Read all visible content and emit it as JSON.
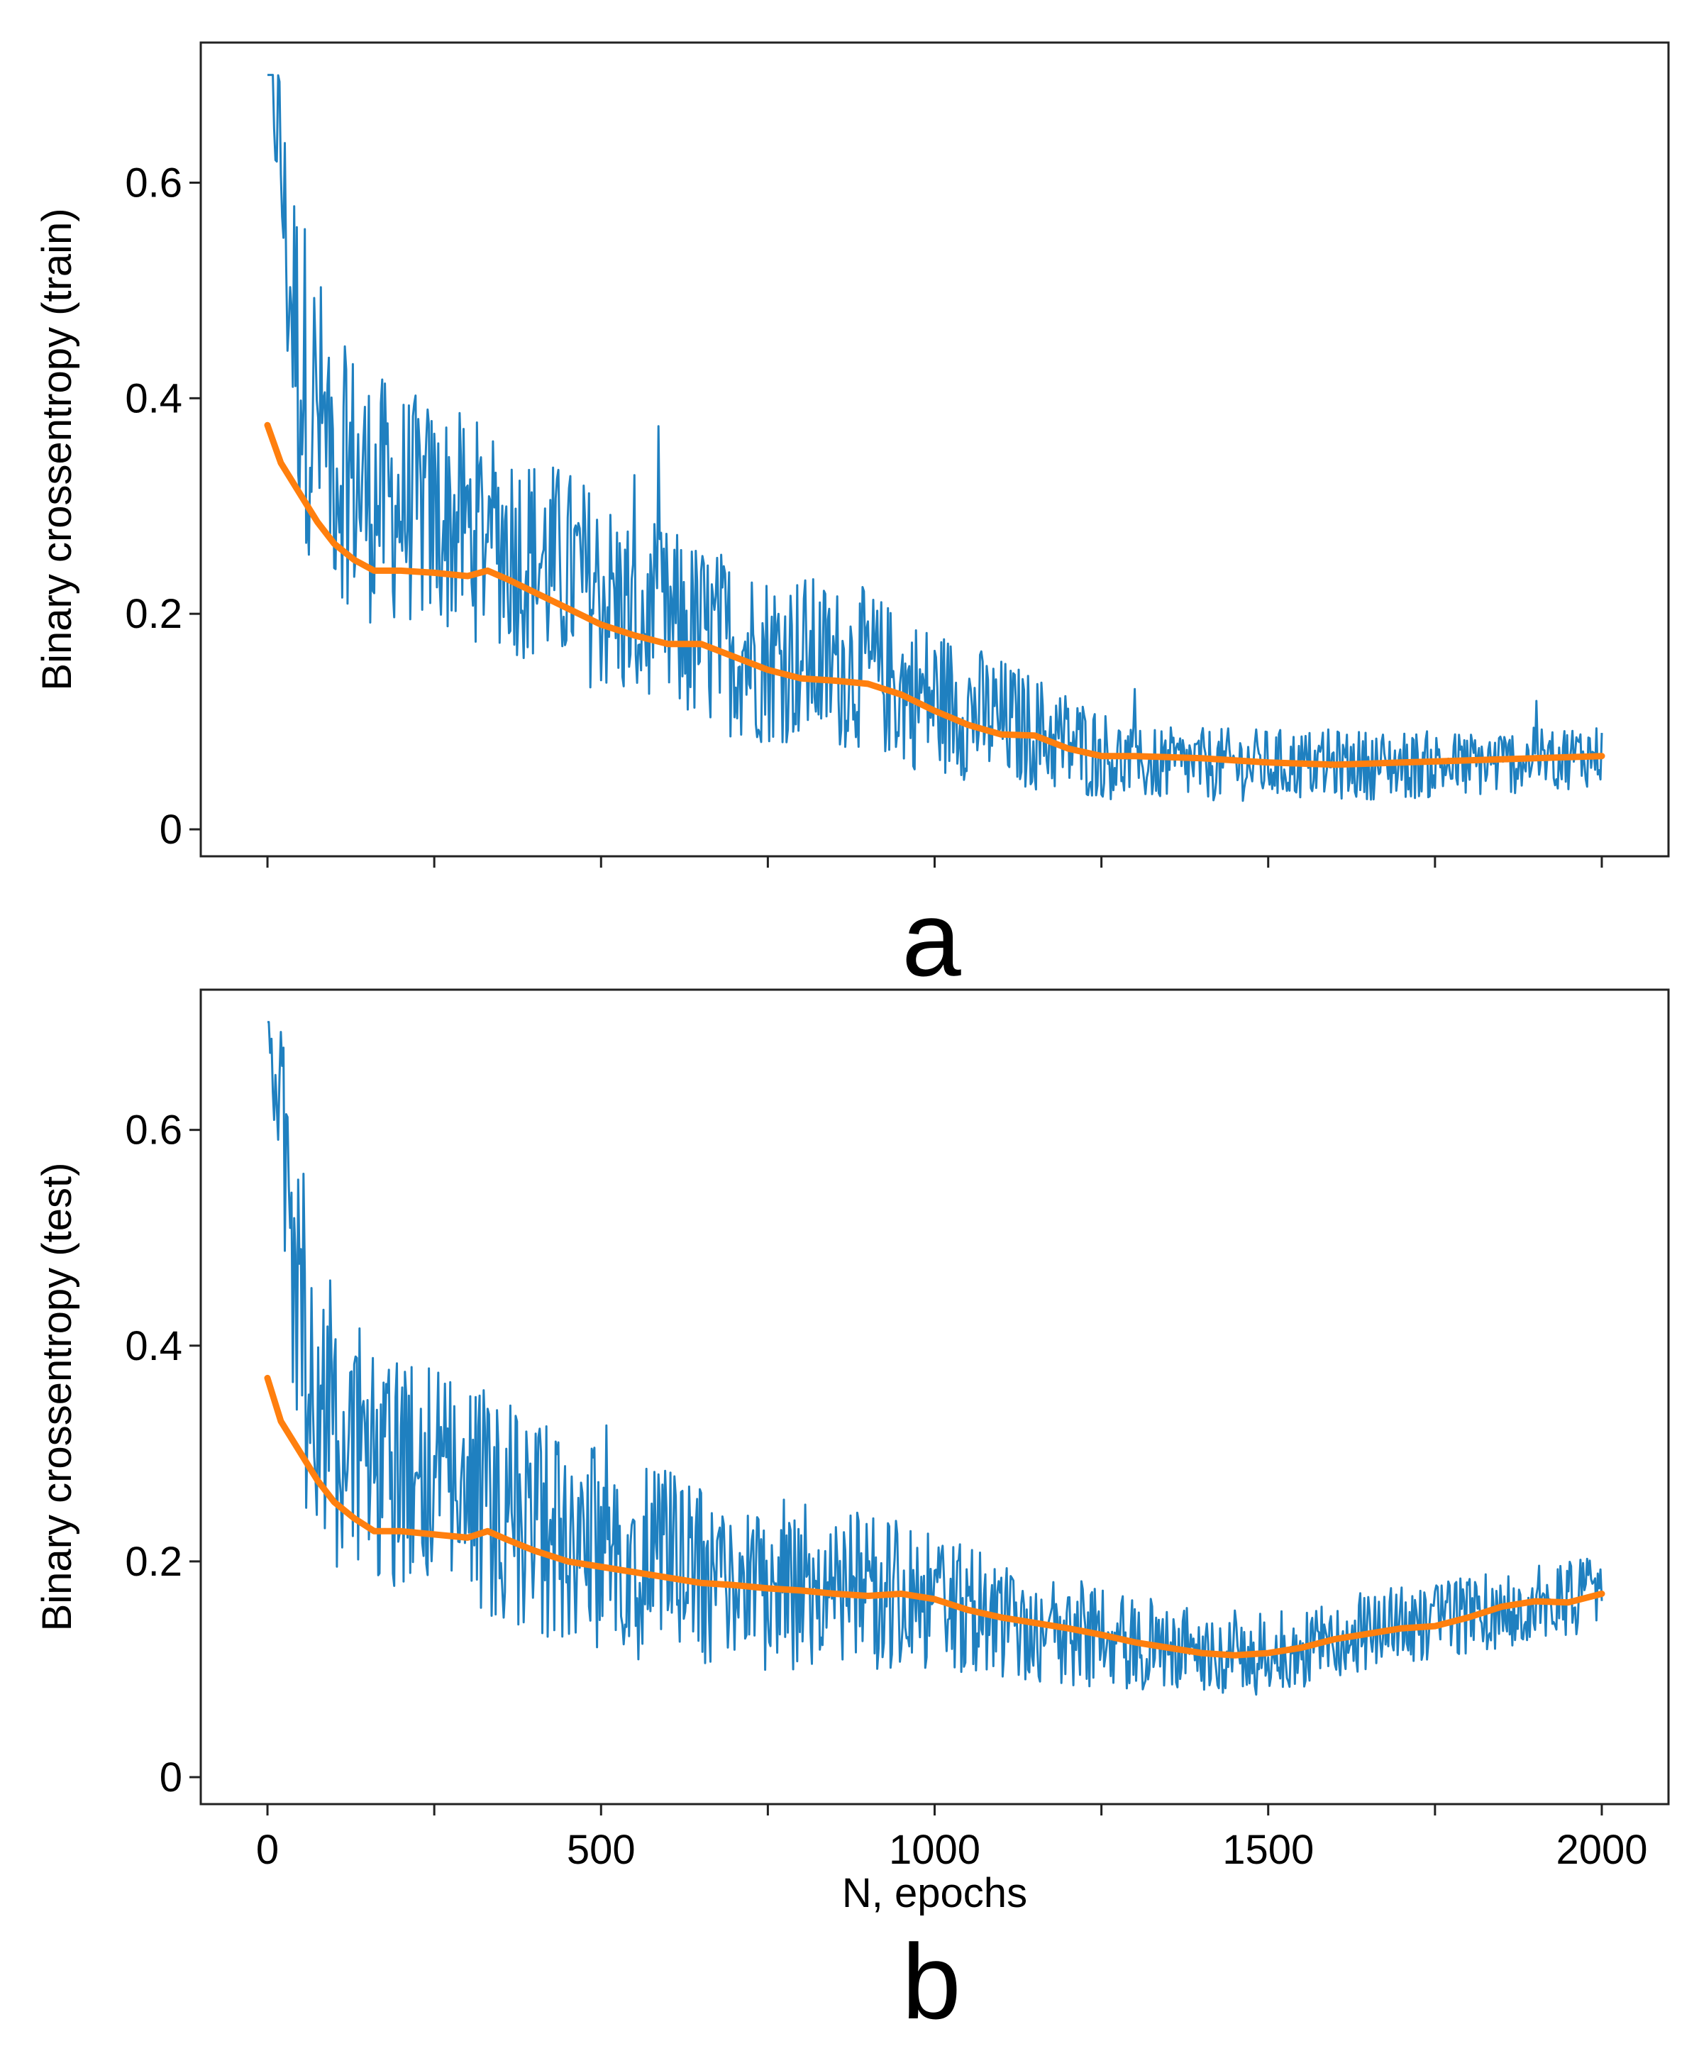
{
  "chart_data": [
    {
      "type": "line",
      "panel_label": "a",
      "title": "",
      "xlabel": "",
      "ylabel": "Binary crossentropy (train)",
      "xlim": [
        -100,
        2100
      ],
      "ylim": [
        -0.025,
        0.73
      ],
      "x_ticks": [
        0,
        250,
        500,
        750,
        1000,
        1250,
        1500,
        1750,
        2000
      ],
      "x_tick_labels": [],
      "y_ticks": [
        0,
        0.2,
        0.4,
        0.6
      ],
      "y_tick_labels": [
        "0",
        "0.2",
        "0.4",
        "0.6"
      ],
      "grid": false,
      "legend": "none",
      "series": [
        {
          "role": "raw",
          "color": "#1f80c0",
          "points": [
            [
              0,
              0.7
            ],
            [
              15,
              0.66
            ],
            [
              30,
              0.52
            ],
            [
              50,
              0.43
            ],
            [
              75,
              0.38
            ],
            [
              100,
              0.35
            ],
            [
              150,
              0.31
            ],
            [
              200,
              0.3
            ],
            [
              250,
              0.29
            ],
            [
              300,
              0.28
            ],
            [
              350,
              0.27
            ],
            [
              400,
              0.25
            ],
            [
              450,
              0.24
            ],
            [
              500,
              0.22
            ],
            [
              550,
              0.2
            ],
            [
              600,
              0.19
            ],
            [
              650,
              0.18
            ],
            [
              700,
              0.17
            ],
            [
              750,
              0.16
            ],
            [
              800,
              0.16
            ],
            [
              850,
              0.15
            ],
            [
              900,
              0.15
            ],
            [
              950,
              0.13
            ],
            [
              1000,
              0.12
            ],
            [
              1050,
              0.11
            ],
            [
              1100,
              0.1
            ],
            [
              1150,
              0.09
            ],
            [
              1200,
              0.08
            ],
            [
              1250,
              0.07
            ],
            [
              1300,
              0.06
            ],
            [
              1400,
              0.06
            ],
            [
              1500,
              0.06
            ],
            [
              1600,
              0.06
            ],
            [
              1700,
              0.06
            ],
            [
              1800,
              0.06
            ],
            [
              1900,
              0.065
            ],
            [
              2000,
              0.07
            ]
          ],
          "spread": [
            [
              0,
              0.05
            ],
            [
              50,
              0.16
            ],
            [
              100,
              0.13
            ],
            [
              200,
              0.11
            ],
            [
              400,
              0.1
            ],
            [
              600,
              0.09
            ],
            [
              800,
              0.08
            ],
            [
              1000,
              0.07
            ],
            [
              1200,
              0.05
            ],
            [
              1300,
              0.035
            ],
            [
              2000,
              0.03
            ]
          ]
        },
        {
          "role": "smoothed",
          "color": "#ff7f0e",
          "points": [
            [
              0,
              0.375
            ],
            [
              20,
              0.34
            ],
            [
              50,
              0.31
            ],
            [
              75,
              0.285
            ],
            [
              100,
              0.265
            ],
            [
              130,
              0.25
            ],
            [
              160,
              0.24
            ],
            [
              200,
              0.24
            ],
            [
              250,
              0.238
            ],
            [
              300,
              0.235
            ],
            [
              330,
              0.24
            ],
            [
              360,
              0.232
            ],
            [
              400,
              0.22
            ],
            [
              450,
              0.205
            ],
            [
              500,
              0.19
            ],
            [
              550,
              0.18
            ],
            [
              600,
              0.172
            ],
            [
              650,
              0.172
            ],
            [
              700,
              0.16
            ],
            [
              750,
              0.148
            ],
            [
              800,
              0.14
            ],
            [
              850,
              0.138
            ],
            [
              900,
              0.135
            ],
            [
              950,
              0.125
            ],
            [
              1000,
              0.11
            ],
            [
              1050,
              0.097
            ],
            [
              1100,
              0.088
            ],
            [
              1150,
              0.087
            ],
            [
              1200,
              0.075
            ],
            [
              1250,
              0.068
            ],
            [
              1300,
              0.068
            ],
            [
              1400,
              0.066
            ],
            [
              1500,
              0.062
            ],
            [
              1600,
              0.06
            ],
            [
              1700,
              0.062
            ],
            [
              1800,
              0.064
            ],
            [
              1900,
              0.066
            ],
            [
              2000,
              0.068
            ]
          ]
        }
      ]
    },
    {
      "type": "line",
      "panel_label": "b",
      "title": "",
      "xlabel": "N, epochs",
      "ylabel": "Binary crossentropy (test)",
      "xlim": [
        -100,
        2100
      ],
      "ylim": [
        -0.025,
        0.73
      ],
      "x_ticks": [
        0,
        250,
        500,
        750,
        1000,
        1250,
        1500,
        1750,
        2000
      ],
      "x_tick_labels": [
        "0",
        "",
        "500",
        "",
        "1000",
        "",
        "1500",
        "",
        "2000"
      ],
      "y_ticks": [
        0,
        0.2,
        0.4,
        0.6
      ],
      "y_tick_labels": [
        "0",
        "0.2",
        "0.4",
        "0.6"
      ],
      "grid": false,
      "legend": "none",
      "series": [
        {
          "role": "raw",
          "color": "#1f80c0",
          "points": [
            [
              0,
              0.7
            ],
            [
              15,
              0.66
            ],
            [
              30,
              0.52
            ],
            [
              50,
              0.42
            ],
            [
              75,
              0.36
            ],
            [
              100,
              0.32
            ],
            [
              150,
              0.29
            ],
            [
              200,
              0.28
            ],
            [
              250,
              0.27
            ],
            [
              300,
              0.26
            ],
            [
              350,
              0.25
            ],
            [
              400,
              0.23
            ],
            [
              450,
              0.22
            ],
            [
              500,
              0.21
            ],
            [
              550,
              0.2
            ],
            [
              600,
              0.195
            ],
            [
              650,
              0.19
            ],
            [
              700,
              0.185
            ],
            [
              750,
              0.18
            ],
            [
              800,
              0.18
            ],
            [
              850,
              0.175
            ],
            [
              900,
              0.17
            ],
            [
              950,
              0.17
            ],
            [
              1000,
              0.16
            ],
            [
              1050,
              0.155
            ],
            [
              1100,
              0.15
            ],
            [
              1150,
              0.14
            ],
            [
              1200,
              0.135
            ],
            [
              1250,
              0.13
            ],
            [
              1300,
              0.125
            ],
            [
              1350,
              0.12
            ],
            [
              1400,
              0.115
            ],
            [
              1450,
              0.115
            ],
            [
              1500,
              0.115
            ],
            [
              1550,
              0.12
            ],
            [
              1600,
              0.13
            ],
            [
              1700,
              0.14
            ],
            [
              1800,
              0.15
            ],
            [
              1900,
              0.16
            ],
            [
              2000,
              0.17
            ]
          ],
          "spread": [
            [
              0,
              0.05
            ],
            [
              50,
              0.16
            ],
            [
              100,
              0.13
            ],
            [
              200,
              0.11
            ],
            [
              400,
              0.1
            ],
            [
              600,
              0.09
            ],
            [
              800,
              0.08
            ],
            [
              1000,
              0.065
            ],
            [
              1200,
              0.05
            ],
            [
              1400,
              0.04
            ],
            [
              2000,
              0.035
            ]
          ]
        },
        {
          "role": "smoothed",
          "color": "#ff7f0e",
          "points": [
            [
              0,
              0.37
            ],
            [
              20,
              0.33
            ],
            [
              50,
              0.3
            ],
            [
              75,
              0.275
            ],
            [
              100,
              0.255
            ],
            [
              130,
              0.24
            ],
            [
              160,
              0.228
            ],
            [
              200,
              0.228
            ],
            [
              250,
              0.225
            ],
            [
              300,
              0.222
            ],
            [
              330,
              0.228
            ],
            [
              360,
              0.22
            ],
            [
              400,
              0.21
            ],
            [
              450,
              0.2
            ],
            [
              500,
              0.195
            ],
            [
              550,
              0.19
            ],
            [
              600,
              0.185
            ],
            [
              650,
              0.18
            ],
            [
              700,
              0.178
            ],
            [
              750,
              0.175
            ],
            [
              800,
              0.173
            ],
            [
              850,
              0.17
            ],
            [
              900,
              0.168
            ],
            [
              950,
              0.17
            ],
            [
              1000,
              0.165
            ],
            [
              1050,
              0.155
            ],
            [
              1100,
              0.148
            ],
            [
              1150,
              0.143
            ],
            [
              1200,
              0.138
            ],
            [
              1250,
              0.132
            ],
            [
              1300,
              0.125
            ],
            [
              1350,
              0.12
            ],
            [
              1400,
              0.115
            ],
            [
              1450,
              0.113
            ],
            [
              1500,
              0.115
            ],
            [
              1550,
              0.12
            ],
            [
              1600,
              0.128
            ],
            [
              1650,
              0.133
            ],
            [
              1700,
              0.138
            ],
            [
              1750,
              0.14
            ],
            [
              1800,
              0.148
            ],
            [
              1850,
              0.158
            ],
            [
              1900,
              0.163
            ],
            [
              1950,
              0.162
            ],
            [
              2000,
              0.17
            ]
          ]
        }
      ]
    }
  ]
}
